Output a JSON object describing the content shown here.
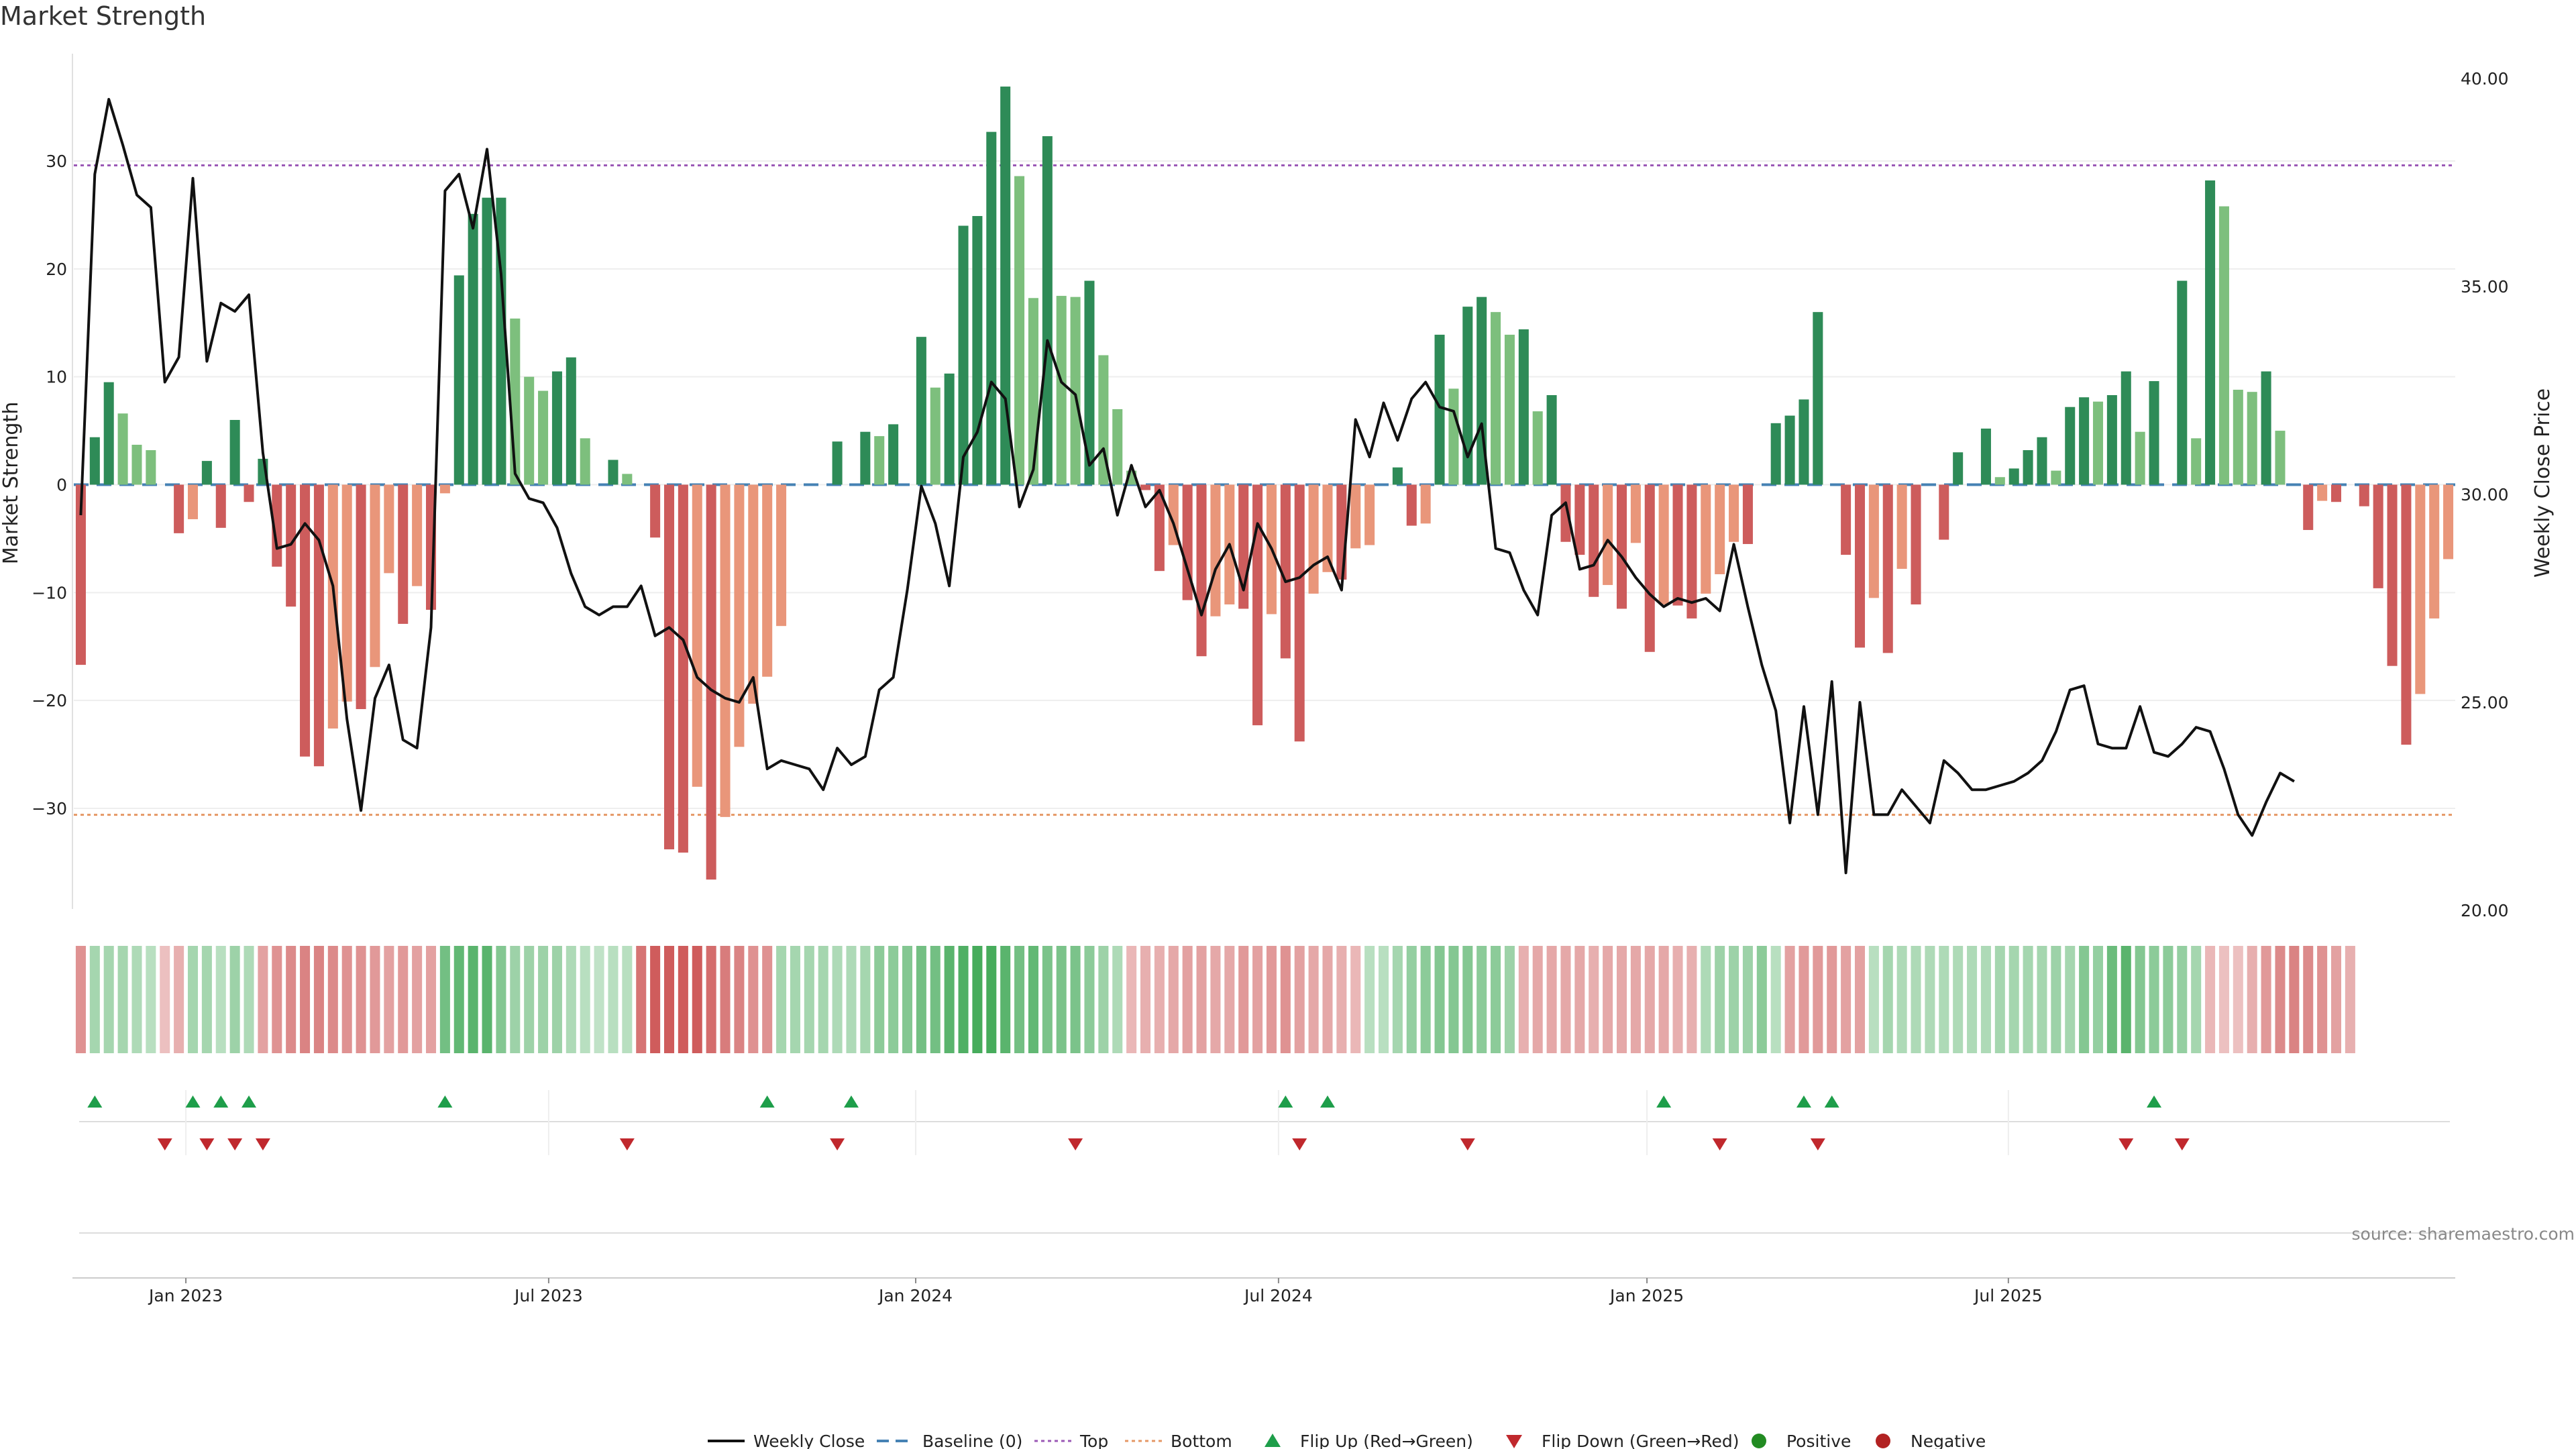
{
  "title": "Market Strength",
  "source": "source: sharemaestro.com",
  "colors": {
    "strong_green": "#2e8b57",
    "light_green": "#7dbf7d",
    "strong_red": "#cd5c5c",
    "light_red": "#e9967a",
    "price_line": "#111111",
    "baseline": "#4682b4",
    "top_line": "#9b59b6",
    "bottom_line": "#e59866",
    "flip_up": "#1e9e4a",
    "flip_down": "#c0282d"
  },
  "legend": [
    {
      "key": "weekly_close",
      "label": "Weekly Close",
      "kind": "line"
    },
    {
      "key": "baseline",
      "label": "Baseline (0)",
      "kind": "dash"
    },
    {
      "key": "top",
      "label": "Top",
      "kind": "dot"
    },
    {
      "key": "bottom",
      "label": "Bottom",
      "kind": "dot"
    },
    {
      "key": "flip_up",
      "label": "Flip Up (Red→Green)",
      "kind": "tri-up"
    },
    {
      "key": "flip_down",
      "label": "Flip Down (Green→Red)",
      "kind": "tri-down"
    },
    {
      "key": "positive",
      "label": "Positive",
      "kind": "circle-green"
    },
    {
      "key": "negative",
      "label": "Negative",
      "kind": "circle-red"
    }
  ],
  "chart_data": {
    "type": "bar",
    "ylabel": "Market Strength",
    "y2label": "Weekly Close Price",
    "ylim": [
      -39,
      40
    ],
    "y2lim": [
      20,
      40
    ],
    "yticks": [
      30,
      20,
      10,
      0,
      -10,
      -20,
      -30
    ],
    "y2ticks": [
      "40.00",
      "35.00",
      "30.00",
      "25.00",
      "20.00"
    ],
    "top_level": 29.6,
    "bottom_level": -30.6,
    "baseline": 0,
    "x_start": "2022-11-14",
    "x_labels": [
      {
        "label": "Jan 2023",
        "week": 8.0
      },
      {
        "label": "Jul 2023",
        "week": 33.9
      },
      {
        "label": "Jan 2024",
        "week": 60.1
      },
      {
        "label": "Jul 2024",
        "week": 86.0
      },
      {
        "label": "Jan 2025",
        "week": 112.3
      },
      {
        "label": "Jul 2025",
        "week": 138.1
      }
    ],
    "strength": [
      -16.7,
      4.4,
      9.5,
      6.6,
      3.7,
      3.2,
      0,
      -4.5,
      -3.2,
      2.2,
      -4.0,
      6.0,
      -1.6,
      2.4,
      -7.6,
      -11.3,
      -25.2,
      -26.1,
      -22.6,
      -20.1,
      -20.8,
      -16.9,
      -8.2,
      -12.9,
      -9.4,
      -11.6,
      -0.8,
      19.4,
      25.1,
      26.6,
      26.6,
      15.4,
      10.0,
      8.7,
      10.5,
      11.8,
      4.3,
      0,
      2.3,
      1.0,
      0,
      -4.9,
      -33.8,
      -34.1,
      -28.0,
      -36.6,
      -30.8,
      -24.3,
      -20.3,
      -17.8,
      -13.1,
      0,
      0,
      0,
      4.0,
      0,
      4.9,
      4.5,
      5.6,
      0,
      13.7,
      9.0,
      10.3,
      24.0,
      24.9,
      32.7,
      36.9,
      28.6,
      17.3,
      32.3,
      17.5,
      17.4,
      18.9,
      12.0,
      7.0,
      1.3,
      -0.5,
      -8.0,
      -5.6,
      -10.7,
      -15.9,
      -12.2,
      -11.1,
      -11.5,
      -22.3,
      -12.0,
      -16.1,
      -23.8,
      -10.1,
      -8.1,
      -8.8,
      -5.9,
      -5.6,
      0,
      1.6,
      -3.8,
      -3.6,
      13.9,
      8.9,
      16.5,
      17.4,
      16.0,
      13.9,
      14.4,
      6.8,
      8.3,
      -5.3,
      -6.5,
      -10.4,
      -9.3,
      -11.5,
      -5.4,
      -15.5,
      -11.1,
      -11.2,
      -12.4,
      -10.1,
      -8.3,
      -5.3,
      -5.5,
      0,
      5.7,
      6.4,
      7.9,
      16.0,
      0,
      -6.5,
      -15.1,
      -10.5,
      -15.6,
      -7.8,
      -11.1,
      0,
      -5.1,
      3.0,
      0,
      5.2,
      0.7,
      1.5,
      3.2,
      4.4,
      1.3,
      7.2,
      8.1,
      7.7,
      8.3,
      10.5,
      4.9,
      9.6,
      0,
      18.9,
      4.3,
      28.2,
      25.8,
      8.8,
      8.6,
      10.5,
      5.0,
      0,
      -4.2,
      -1.5,
      -1.6,
      0,
      -2.0,
      -9.6,
      -16.8,
      -24.1,
      -19.4,
      -12.4,
      -6.9
    ],
    "price": [
      29.5,
      37.7,
      39.5,
      38.4,
      37.2,
      36.9,
      32.7,
      33.3,
      37.6,
      33.2,
      34.6,
      34.4,
      34.8,
      31.0,
      28.7,
      28.8,
      29.3,
      28.9,
      27.8,
      24.6,
      22.4,
      25.1,
      25.9,
      24.1,
      23.9,
      26.8,
      37.3,
      37.7,
      36.4,
      38.3,
      35.3,
      30.5,
      29.9,
      29.8,
      29.2,
      28.1,
      27.3,
      27.1,
      27.3,
      27.3,
      27.8,
      26.6,
      26.8,
      26.5,
      25.6,
      25.3,
      25.1,
      25.0,
      25.6,
      23.4,
      23.6,
      23.5,
      23.4,
      22.9,
      23.9,
      23.5,
      23.7,
      25.3,
      25.6,
      27.7,
      30.2,
      29.3,
      27.8,
      30.9,
      31.5,
      32.7,
      32.3,
      29.7,
      30.6,
      33.7,
      32.7,
      32.4,
      30.7,
      31.1,
      29.5,
      30.7,
      29.7,
      30.1,
      29.3,
      28.2,
      27.1,
      28.2,
      28.8,
      27.7,
      29.3,
      28.7,
      27.9,
      28.0,
      28.3,
      28.5,
      27.7,
      31.8,
      30.9,
      32.2,
      31.3,
      32.3,
      32.7,
      32.1,
      32.0,
      30.9,
      31.7,
      28.7,
      28.6,
      27.7,
      27.1,
      29.5,
      29.8,
      28.2,
      28.3,
      28.9,
      28.5,
      28.0,
      27.6,
      27.3,
      27.5,
      27.4,
      27.5,
      27.2,
      28.8,
      27.3,
      25.9,
      24.8,
      22.1,
      24.9,
      22.3,
      25.5,
      20.9,
      25.0,
      22.3,
      22.3,
      22.9,
      22.5,
      22.1,
      23.6,
      23.3,
      22.9,
      22.9,
      23.0,
      23.1,
      23.3,
      23.6,
      24.3,
      25.3,
      25.4,
      24.0,
      23.9,
      23.9,
      24.9,
      23.8,
      23.7,
      24.0,
      24.4,
      24.3,
      23.4,
      22.3,
      21.8,
      22.6,
      23.3,
      23.1
    ],
    "intensity_strip": [
      -0.5,
      0.3,
      0.3,
      0.3,
      0.25,
      0.2,
      -0.2,
      -0.3,
      0.3,
      0.3,
      0.2,
      0.35,
      0.25,
      -0.4,
      -0.5,
      -0.55,
      -0.6,
      -0.6,
      -0.55,
      -0.5,
      -0.5,
      -0.45,
      -0.4,
      -0.45,
      -0.4,
      -0.4,
      0.6,
      0.7,
      0.75,
      0.75,
      0.5,
      0.35,
      0.35,
      0.35,
      0.35,
      0.25,
      0.2,
      0.15,
      0.2,
      0.2,
      -0.7,
      -0.85,
      -0.85,
      -0.85,
      -0.85,
      -0.75,
      -0.65,
      -0.6,
      -0.5,
      -0.5,
      0.3,
      0.3,
      0.3,
      0.3,
      0.25,
      0.25,
      0.3,
      0.45,
      0.45,
      0.5,
      0.6,
      0.6,
      0.75,
      0.8,
      0.85,
      0.85,
      0.75,
      0.6,
      0.7,
      0.55,
      0.55,
      0.55,
      0.45,
      0.35,
      0.25,
      -0.25,
      -0.3,
      -0.3,
      -0.35,
      -0.4,
      -0.4,
      -0.35,
      -0.35,
      -0.45,
      -0.4,
      -0.45,
      -0.5,
      -0.4,
      -0.35,
      -0.35,
      -0.3,
      -0.25,
      0.2,
      0.2,
      0.3,
      0.4,
      0.45,
      0.5,
      0.5,
      0.5,
      0.45,
      0.45,
      0.35,
      -0.3,
      -0.35,
      -0.35,
      -0.35,
      -0.35,
      -0.3,
      -0.35,
      -0.35,
      -0.35,
      -0.35,
      -0.35,
      -0.3,
      -0.3,
      0.25,
      0.35,
      0.35,
      0.35,
      0.45,
      0.2,
      -0.4,
      -0.45,
      -0.45,
      -0.45,
      -0.4,
      -0.4,
      0.2,
      0.3,
      0.25,
      0.25,
      0.25,
      0.25,
      0.25,
      0.25,
      0.25,
      0.3,
      0.3,
      0.3,
      0.3,
      0.35,
      0.3,
      0.5,
      0.4,
      0.65,
      0.75,
      0.5,
      0.45,
      0.45,
      0.4,
      0.3,
      -0.25,
      -0.2,
      -0.2,
      -0.3,
      -0.45,
      -0.55,
      -0.6,
      -0.55,
      -0.5,
      -0.4,
      -0.3
    ],
    "flip_up": [
      1,
      8,
      10,
      12,
      26,
      49,
      55,
      86,
      89,
      113,
      123,
      125,
      148
    ],
    "flip_down": [
      6,
      9,
      11,
      13,
      39,
      54,
      71,
      87,
      99,
      117,
      124,
      146,
      150
    ]
  }
}
